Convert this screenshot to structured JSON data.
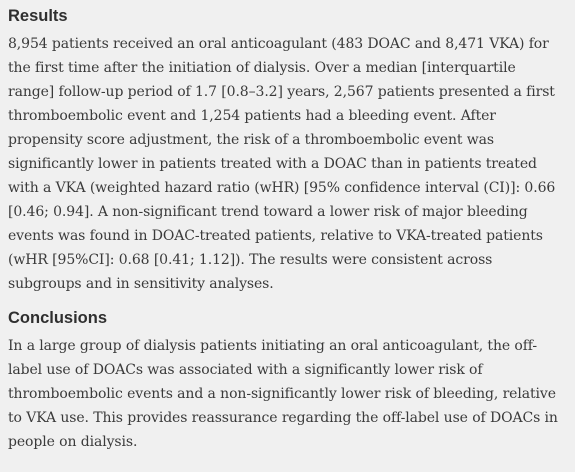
{
  "results": {
    "heading": "Results",
    "body": "8,954 patients received an oral anticoagulant (483 DOAC and 8,471 VKA) for the first time after the initiation of dialysis. Over a median [interquartile range] follow-up period of 1.7 [0.8–3.2] years, 2,567 patients presented a first thromboembolic event and 1,254 patients had a bleeding event. After propensity score adjustment, the risk of a thromboembolic event was significantly lower in patients treated with a DOAC than in patients treated with a VKA (weighted hazard ratio (wHR) [95% confidence interval (CI)]: 0.66 [0.46; 0.94]. A non-significant trend toward a lower risk of major bleeding events was found in DOAC-treated patients, relative to VKA-treated patients (wHR [95%CI]: 0.68 [0.41; 1.12]). The results were consistent across subgroups and in sensitivity analyses."
  },
  "conclusions": {
    "heading": "Conclusions",
    "body": "In a large group of dialysis patients initiating an oral anticoagulant, the off-label use of DOACs was associated with a significantly lower risk of thromboembolic events and a non-significantly lower risk of bleeding, relative to VKA use. This provides reassurance regarding the off-label use of DOACs in people on dialysis."
  }
}
